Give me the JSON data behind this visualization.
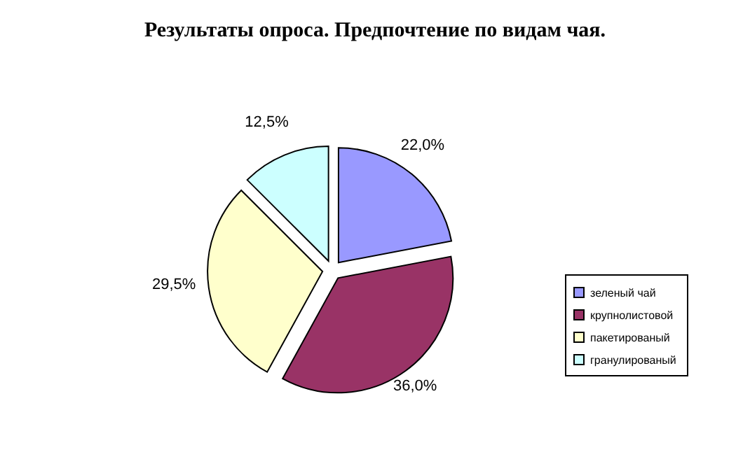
{
  "chart_data": {
    "type": "pie",
    "title": "Результаты опроса. Предпочтение по видам чая.",
    "categories": [
      "зеленый чай",
      "крупнолистовой",
      "пакетированый",
      "гранулированый"
    ],
    "values": [
      22.0,
      36.0,
      29.5,
      12.5
    ],
    "value_labels": [
      "22,0%",
      "36,0%",
      "29,5%",
      "12,5%"
    ],
    "colors": [
      "#9999ff",
      "#993366",
      "#ffffcc",
      "#ccffff"
    ],
    "legend": "right"
  }
}
